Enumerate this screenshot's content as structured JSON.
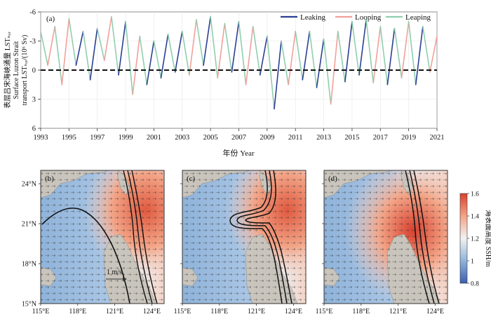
{
  "figure": {
    "panel_a_label": "(a)",
    "map_labels": [
      "(b)",
      "(c)",
      "(d)"
    ],
    "ylabel_lines": [
      "表层吕宋海峡通量 LSTₛᵤᵣ",
      "Surface Luzon Strait",
      "transport LSTₛᵤᵣ/(10⁶ Sv)"
    ],
    "xlabel": "年份 Year",
    "colorbar_label": "海表面高度 SSH/m",
    "velocity_scale_label": "1 m/s"
  },
  "chart_data": [
    {
      "type": "line",
      "title": "",
      "xlabel": "年份 Year",
      "ylabel": "Surface Luzon Strait transport LSTsur/(10⁶ Sv)",
      "xlim": [
        1993,
        2021
      ],
      "ylim": [
        -6,
        6
      ],
      "y_inverted": true,
      "x_ticks": [
        "1993",
        "1995",
        "1997",
        "1999",
        "2001",
        "2003",
        "2005",
        "2007",
        "2009",
        "2011",
        "2013",
        "2015",
        "2017",
        "2019",
        "2021"
      ],
      "x_tick_values": [
        1993,
        1995,
        1997,
        1999,
        2001,
        2003,
        2005,
        2007,
        2009,
        2011,
        2013,
        2015,
        2017,
        2019,
        2021
      ],
      "y_ticks": [
        "-6",
        "-3",
        "0",
        "3",
        "6"
      ],
      "y_tick_values": [
        -6,
        -3,
        0,
        3,
        6
      ],
      "series": [
        {
          "name": "Leaking",
          "color": "#2b3f93"
        },
        {
          "name": "Looping",
          "color": "#f2a09a"
        },
        {
          "name": "Leaping",
          "color": "#8fcfae"
        }
      ],
      "x": [
        1993.0,
        1993.5,
        1994.0,
        1994.5,
        1995.0,
        1995.5,
        1996.0,
        1996.5,
        1997.0,
        1997.5,
        1998.0,
        1998.5,
        1999.0,
        1999.5,
        2000.0,
        2000.5,
        2001.0,
        2001.5,
        2002.0,
        2002.5,
        2003.0,
        2003.5,
        2004.0,
        2004.5,
        2005.0,
        2005.5,
        2006.0,
        2006.5,
        2007.0,
        2007.5,
        2008.0,
        2008.5,
        2009.0,
        2009.5,
        2010.0,
        2010.5,
        2011.0,
        2011.5,
        2012.0,
        2012.5,
        2013.0,
        2013.5,
        2014.0,
        2014.5,
        2015.0,
        2015.5,
        2016.0,
        2016.5,
        2017.0,
        2017.5,
        2018.0,
        2018.5,
        2019.0,
        2019.5,
        2020.0,
        2020.5,
        2021.0
      ],
      "y": [
        -4,
        -0.5,
        -4.5,
        1.5,
        -5.3,
        -0.5,
        -4.0,
        1.0,
        -4.3,
        -1.0,
        -5.5,
        0.5,
        -5.0,
        2.5,
        -3.5,
        1.5,
        -3.0,
        0.8,
        -3.7,
        0.2,
        -4.0,
        0.5,
        -5.2,
        -0.5,
        -5.5,
        0.8,
        -4.8,
        0.2,
        -5.0,
        1.5,
        -4.5,
        0.5,
        -3.5,
        4.0,
        -3.0,
        1.5,
        -4.0,
        1.0,
        -4.0,
        1.8,
        -3.2,
        3.5,
        -4.0,
        1.2,
        -5.0,
        0.5,
        -5.2,
        1.3,
        -4.5,
        1.5,
        -4.3,
        0.8,
        -5.0,
        1.5,
        -4.5,
        0.2,
        -3.5
      ],
      "regime": [
        "Leaking",
        "Leaping",
        "Looping",
        "Leaping",
        "Looping",
        "Leaping",
        "Leaking",
        "Leaping",
        "Leaking",
        "Leaping",
        "Looping",
        "Leaping",
        "Leaking",
        "Leaping",
        "Looping",
        "Leaping",
        "Leaking",
        "Leaping",
        "Leaking",
        "Leaping",
        "Leaking",
        "Leaping",
        "Looping",
        "Leaping",
        "Leaking",
        "Leaping",
        "Looping",
        "Leaping",
        "Leaking",
        "Leaping",
        "Looping",
        "Leaping",
        "Leaking",
        "Leaping",
        "Leaking",
        "Leaping",
        "Looping",
        "Leaping",
        "Leaking",
        "Leaping",
        "Leaking",
        "Leaping",
        "Looping",
        "Leaping",
        "Leaking",
        "Leaping",
        "Leaking",
        "Leaping",
        "Looping",
        "Leaping",
        "Leaking",
        "Leaping",
        "Looping",
        "Leaping",
        "Leaking",
        "Leaping",
        "Looping"
      ],
      "legend_location": "top-right"
    },
    {
      "type": "heatmap",
      "panels": [
        "(b)",
        "(c)",
        "(d)"
      ],
      "x_ticks": [
        "115°E",
        "118°E",
        "121°E",
        "124°E"
      ],
      "x_tick_values": [
        115,
        118,
        121,
        124
      ],
      "y_ticks": [
        "15°N",
        "18°N",
        "21°N",
        "24°N"
      ],
      "y_tick_values": [
        15,
        18,
        21,
        24
      ],
      "xlim": [
        115,
        125
      ],
      "ylim": [
        15,
        25
      ],
      "colorbar": {
        "label": "海表面高度 SSH/m",
        "range": [
          0.8,
          1.6
        ],
        "ticks": [
          "0.8",
          "1",
          "1.2",
          "1.4",
          "1.6"
        ],
        "tick_values": [
          0.8,
          1.0,
          1.2,
          1.4,
          1.6
        ],
        "colors": [
          "#3b5fae",
          "#8fb3da",
          "#f2f2f2",
          "#f3a487",
          "#d8412f"
        ]
      },
      "velocity_scale": "1 m/s"
    }
  ]
}
